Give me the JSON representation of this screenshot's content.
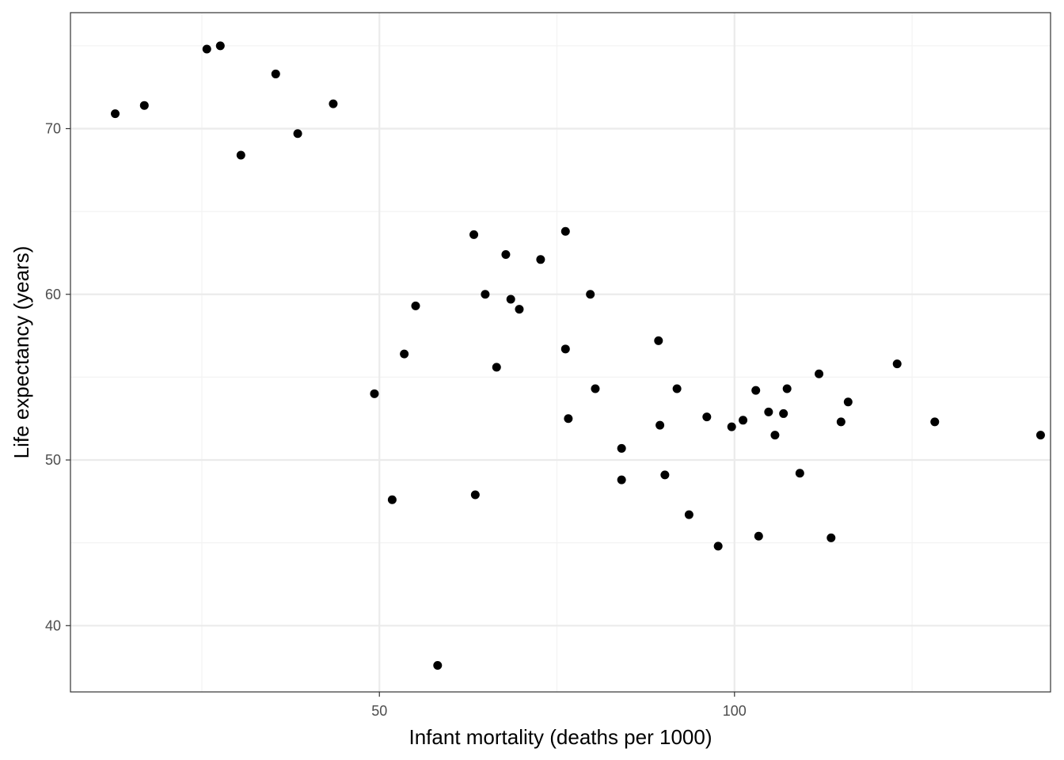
{
  "chart_data": {
    "type": "scatter",
    "title": "",
    "xlabel": "Infant mortality (deaths per 1000)",
    "ylabel": "Life expectancy (years)",
    "xlim": [
      6.5,
      144.5
    ],
    "ylim": [
      36,
      77
    ],
    "x_ticks": [
      50,
      100
    ],
    "x_tick_labels": [
      "50",
      "100"
    ],
    "x_minor_ticks": [
      25,
      75,
      125
    ],
    "y_ticks": [
      40,
      50,
      60,
      70
    ],
    "y_tick_labels": [
      "40",
      "50",
      "60",
      "70"
    ],
    "y_minor_ticks": [
      45,
      55,
      65,
      75
    ],
    "grid": true,
    "legend": "none",
    "colors": {
      "points": "#000000",
      "grid_major": "#ebebeb",
      "grid_minor": "#f3f3f3",
      "panel_border": "#333333"
    },
    "points": [
      {
        "x": 12.8,
        "y": 70.9
      },
      {
        "x": 16.9,
        "y": 71.4
      },
      {
        "x": 25.7,
        "y": 74.8
      },
      {
        "x": 27.6,
        "y": 75.0
      },
      {
        "x": 30.5,
        "y": 68.4
      },
      {
        "x": 35.4,
        "y": 73.3
      },
      {
        "x": 38.5,
        "y": 69.7
      },
      {
        "x": 43.5,
        "y": 71.5
      },
      {
        "x": 49.3,
        "y": 54.0
      },
      {
        "x": 51.8,
        "y": 47.6
      },
      {
        "x": 53.5,
        "y": 56.4
      },
      {
        "x": 55.1,
        "y": 59.3
      },
      {
        "x": 58.2,
        "y": 37.6
      },
      {
        "x": 63.3,
        "y": 63.6
      },
      {
        "x": 63.5,
        "y": 47.9
      },
      {
        "x": 64.9,
        "y": 60.0
      },
      {
        "x": 66.5,
        "y": 55.6
      },
      {
        "x": 67.8,
        "y": 62.4
      },
      {
        "x": 68.5,
        "y": 59.7
      },
      {
        "x": 69.7,
        "y": 59.1
      },
      {
        "x": 72.7,
        "y": 62.1
      },
      {
        "x": 76.2,
        "y": 63.8
      },
      {
        "x": 76.2,
        "y": 56.7
      },
      {
        "x": 76.6,
        "y": 52.5
      },
      {
        "x": 79.7,
        "y": 60.0
      },
      {
        "x": 80.4,
        "y": 54.3
      },
      {
        "x": 84.1,
        "y": 50.7
      },
      {
        "x": 84.1,
        "y": 48.8
      },
      {
        "x": 89.3,
        "y": 57.2
      },
      {
        "x": 89.5,
        "y": 52.1
      },
      {
        "x": 90.2,
        "y": 49.1
      },
      {
        "x": 91.9,
        "y": 54.3
      },
      {
        "x": 93.6,
        "y": 46.7
      },
      {
        "x": 96.1,
        "y": 52.6
      },
      {
        "x": 97.7,
        "y": 44.8
      },
      {
        "x": 99.6,
        "y": 52.0
      },
      {
        "x": 101.2,
        "y": 52.4
      },
      {
        "x": 103.0,
        "y": 54.2
      },
      {
        "x": 103.4,
        "y": 45.4
      },
      {
        "x": 104.8,
        "y": 52.9
      },
      {
        "x": 105.7,
        "y": 51.5
      },
      {
        "x": 106.9,
        "y": 52.8
      },
      {
        "x": 107.4,
        "y": 54.3
      },
      {
        "x": 109.2,
        "y": 49.2
      },
      {
        "x": 111.9,
        "y": 55.2
      },
      {
        "x": 113.6,
        "y": 45.3
      },
      {
        "x": 115.0,
        "y": 52.3
      },
      {
        "x": 116.0,
        "y": 53.5
      },
      {
        "x": 122.9,
        "y": 55.8
      },
      {
        "x": 128.2,
        "y": 52.3
      },
      {
        "x": 143.1,
        "y": 51.5
      }
    ]
  }
}
